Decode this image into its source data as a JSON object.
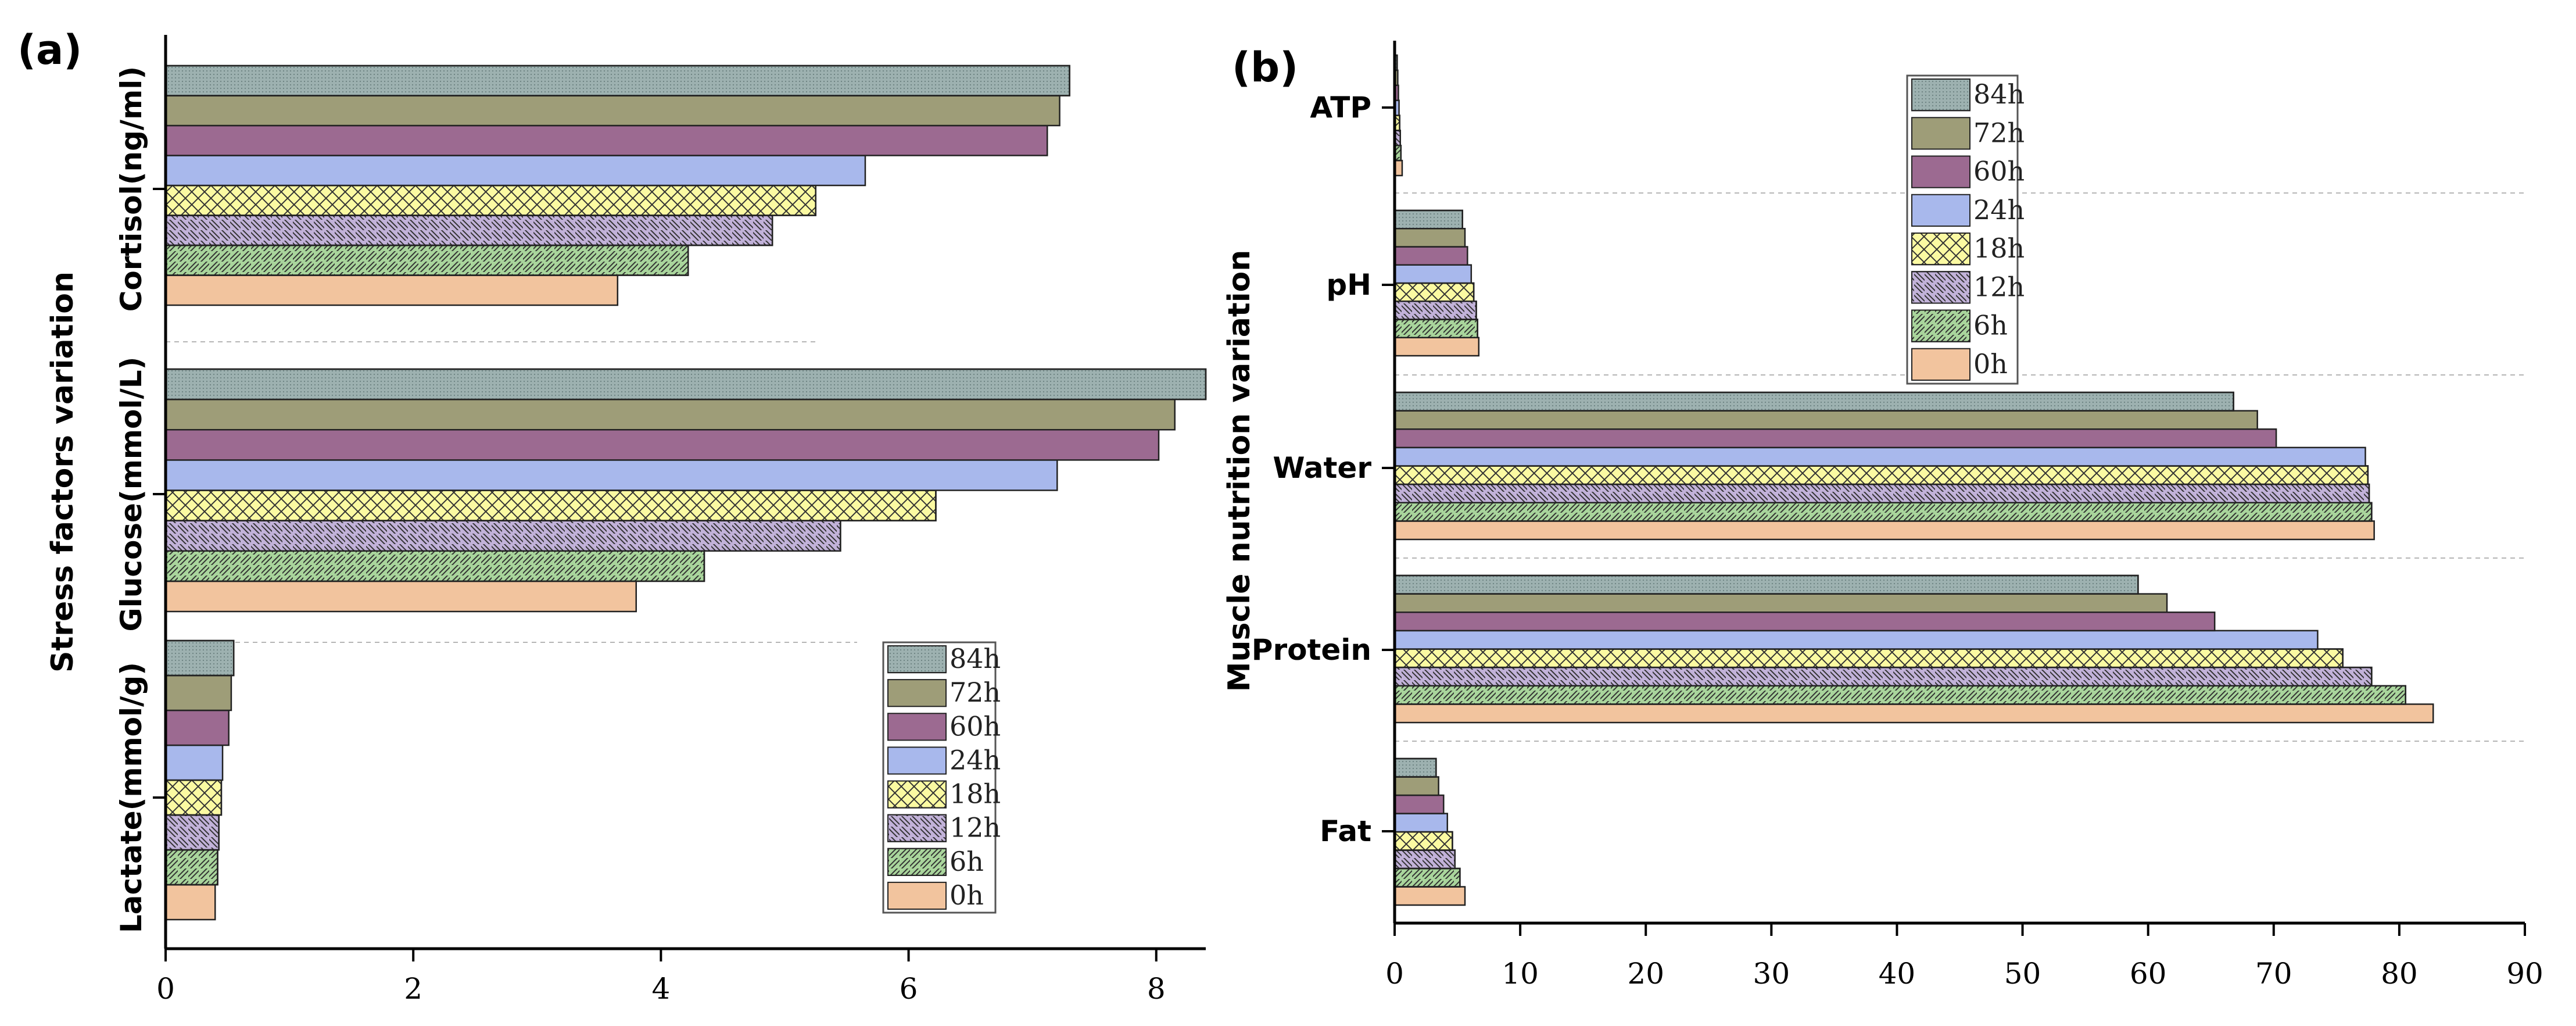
{
  "chart_data": [
    {
      "type": "bar",
      "orientation": "horizontal",
      "panel_label": "(a)",
      "title": "",
      "xlabel": "",
      "ylabel": "Stress factors variation",
      "xlim": [
        0,
        8.4
      ],
      "xticks": [
        "0",
        "2",
        "4",
        "6",
        "8"
      ],
      "categories": [
        "Lactate(mmol/g)",
        "Glucose(mmol/L)",
        "Cortisol(ng/ml)"
      ],
      "series": [
        {
          "name": "0h",
          "values": [
            0.4,
            3.8,
            3.65
          ]
        },
        {
          "name": "6h",
          "values": [
            0.42,
            4.35,
            4.22
          ]
        },
        {
          "name": "12h",
          "values": [
            0.43,
            5.45,
            4.9
          ]
        },
        {
          "name": "18h",
          "values": [
            0.45,
            6.22,
            5.25
          ]
        },
        {
          "name": "24h",
          "values": [
            0.46,
            7.2,
            5.65
          ]
        },
        {
          "name": "60h",
          "values": [
            0.51,
            8.02,
            7.12
          ]
        },
        {
          "name": "72h",
          "values": [
            0.53,
            8.15,
            7.22
          ]
        },
        {
          "name": "84h",
          "values": [
            0.55,
            8.4,
            7.3
          ]
        }
      ],
      "legend": [
        "84h",
        "72h",
        "60h",
        "24h",
        "18h",
        "12h",
        "6h",
        "0h"
      ],
      "legend_position": "lower-right",
      "grid": false
    },
    {
      "type": "bar",
      "orientation": "horizontal",
      "panel_label": "(b)",
      "title": "",
      "xlabel": "",
      "ylabel": "Muscle nutrition variation",
      "xlim": [
        0,
        90
      ],
      "xticks": [
        "0",
        "10",
        "20",
        "30",
        "40",
        "50",
        "60",
        "70",
        "80",
        "90"
      ],
      "categories": [
        "Fat",
        "Protein",
        "Water",
        "pH",
        "ATP"
      ],
      "series": [
        {
          "name": "0h",
          "values": [
            5.6,
            82.7,
            78.0,
            6.7,
            0.6
          ]
        },
        {
          "name": "6h",
          "values": [
            5.2,
            80.5,
            77.8,
            6.6,
            0.5
          ]
        },
        {
          "name": "12h",
          "values": [
            4.8,
            77.8,
            77.6,
            6.5,
            0.45
          ]
        },
        {
          "name": "18h",
          "values": [
            4.6,
            75.5,
            77.5,
            6.3,
            0.4
          ]
        },
        {
          "name": "24h",
          "values": [
            4.2,
            73.5,
            77.3,
            6.1,
            0.35
          ]
        },
        {
          "name": "60h",
          "values": [
            3.9,
            65.3,
            70.2,
            5.8,
            0.3
          ]
        },
        {
          "name": "72h",
          "values": [
            3.5,
            61.5,
            68.7,
            5.6,
            0.25
          ]
        },
        {
          "name": "84h",
          "values": [
            3.3,
            59.2,
            66.8,
            5.4,
            0.2
          ]
        }
      ],
      "legend": [
        "84h",
        "72h",
        "60h",
        "24h",
        "18h",
        "12h",
        "6h",
        "0h"
      ],
      "legend_position": "top-center",
      "grid": true
    }
  ],
  "style": {
    "colors": {
      "0h": "#f2c49e",
      "6h": "#a9d59c",
      "12h": "#c2b2d9",
      "18h": "#fbfaa2",
      "24h": "#a8b8ec",
      "60h": "#9c6a91",
      "72h": "#9e9d78",
      "84h": "#9db1b0"
    },
    "patterns": {
      "0h": "none",
      "6h": "fwd",
      "12h": "back",
      "18h": "cross",
      "24h": "none",
      "60h": "none",
      "72h": "none",
      "84h": "dots"
    }
  }
}
